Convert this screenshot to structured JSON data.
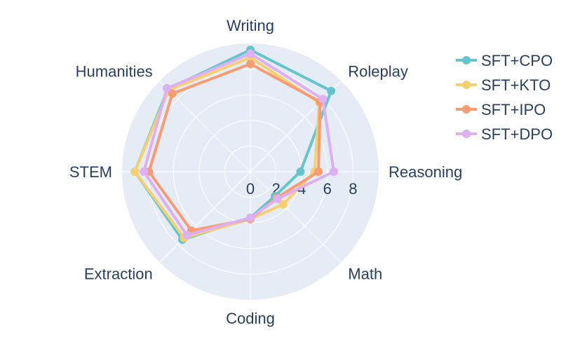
{
  "chart_data": {
    "type": "radar",
    "axes": [
      "Writing",
      "Roleplay",
      "Reasoning",
      "Math",
      "Coding",
      "Extraction",
      "STEM",
      "Humanities"
    ],
    "radial_ticks": [
      "0",
      "2",
      "4",
      "6",
      "8"
    ],
    "radial_tick_values": [
      0,
      2,
      4,
      6,
      8
    ],
    "radial_range": [
      0,
      10
    ],
    "grid": true,
    "legend_position": "top-right",
    "series": [
      {
        "name": "SFT+CPO",
        "color": "#66c5cc",
        "values": [
          9.5,
          8.9,
          3.9,
          2.7,
          3.6,
          7.5,
          9.0,
          9.1
        ]
      },
      {
        "name": "SFT+KTO",
        "color": "#f6cf71",
        "values": [
          8.9,
          7.6,
          5.0,
          3.6,
          3.7,
          7.3,
          9.0,
          9.0
        ]
      },
      {
        "name": "SFT+IPO",
        "color": "#f89c74",
        "values": [
          8.4,
          7.7,
          5.3,
          2.9,
          3.7,
          6.5,
          7.9,
          8.6
        ]
      },
      {
        "name": "SFT+DPO",
        "color": "#dcb0f2",
        "values": [
          9.2,
          8.0,
          6.5,
          3.0,
          3.6,
          7.0,
          8.3,
          9.2
        ]
      }
    ]
  }
}
